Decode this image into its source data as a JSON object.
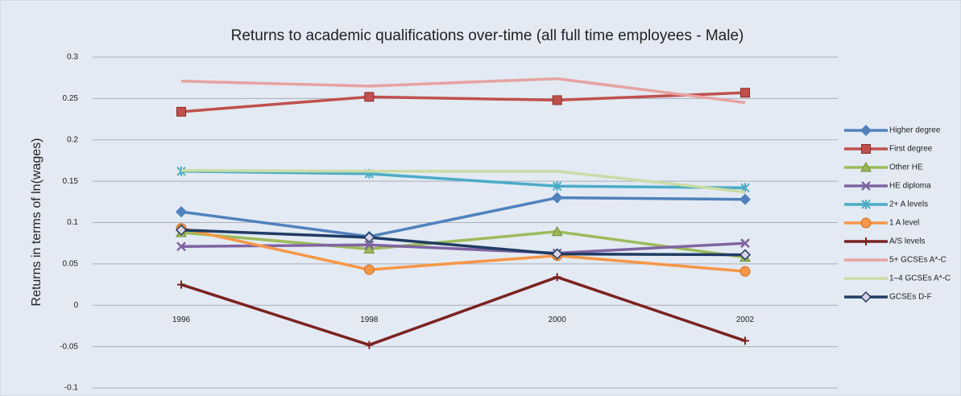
{
  "chart_data": {
    "type": "line",
    "title": "Returns to academic qualifications over-time (all full time employees - Male)",
    "y_label": "Returns in terms of ln(wages)",
    "categories": [
      "1996",
      "1998",
      "2000",
      "2002"
    ],
    "ylim": [
      -0.1,
      0.3
    ],
    "yticks": [
      -0.1,
      -0.05,
      0,
      0.05,
      0.1,
      0.15,
      0.2,
      0.25,
      0.3
    ],
    "grid": true,
    "legend": "right",
    "series": [
      {
        "name": "Higher degree",
        "color": "#4f81bd",
        "marker": "diamond",
        "values": [
          0.113,
          0.083,
          0.13,
          0.128
        ]
      },
      {
        "name": "First degree",
        "color": "#c0504d",
        "marker": "square",
        "values": [
          0.234,
          0.252,
          0.248,
          0.257
        ]
      },
      {
        "name": "Other HE",
        "color": "#9bbb59",
        "marker": "triangle",
        "values": [
          0.088,
          0.068,
          0.089,
          0.058
        ]
      },
      {
        "name": "HE diploma",
        "color": "#8064a2",
        "marker": "x",
        "values": [
          0.071,
          0.073,
          0.063,
          0.075
        ]
      },
      {
        "name": "2+ A levels",
        "color": "#4bacc6",
        "marker": "star",
        "values": [
          0.162,
          0.159,
          0.144,
          0.142
        ]
      },
      {
        "name": "1 A level",
        "color": "#f79646",
        "marker": "circle",
        "values": [
          0.093,
          0.043,
          0.06,
          0.041
        ]
      },
      {
        "name": "A/S levels",
        "color": "#7b2222",
        "marker": "plus",
        "values": [
          0.025,
          -0.048,
          0.034,
          -0.043
        ]
      },
      {
        "name": "5+ GCSEs A*-C",
        "color": "#e6a3a1",
        "marker": "none",
        "values": [
          0.271,
          0.265,
          0.274,
          0.245
        ]
      },
      {
        "name": "1–4 GCSEs A*-C",
        "color": "#c9dca5",
        "marker": "none",
        "values": [
          0.163,
          0.162,
          0.162,
          0.137
        ]
      },
      {
        "name": "GCSEs D-F",
        "color": "#1f3c64",
        "marker": "hollow-diamond",
        "values": [
          0.091,
          0.082,
          0.062,
          0.061
        ]
      }
    ]
  }
}
